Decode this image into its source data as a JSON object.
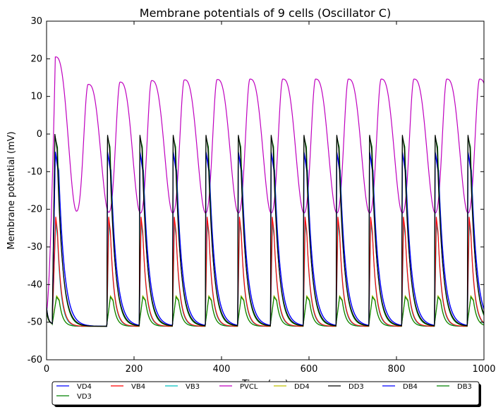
{
  "chart_data": {
    "type": "line",
    "title": "Membrane potentials of 9 cells (Oscillator C)",
    "xlabel": "Time (ms)",
    "ylabel": "Membrane potential (mV)",
    "xlim": [
      0,
      1000
    ],
    "ylim": [
      -60,
      30
    ],
    "xticks": [
      0,
      200,
      400,
      600,
      800,
      1000
    ],
    "yticks": [
      -60,
      -50,
      -40,
      -30,
      -20,
      -10,
      0,
      10,
      20,
      30
    ],
    "grid": false,
    "legend_position": "bottom",
    "series": [
      {
        "name": "VD4",
        "color": "#0000ff"
      },
      {
        "name": "VB4",
        "color": "#ff0000"
      },
      {
        "name": "VB3",
        "color": "#00bfbf"
      },
      {
        "name": "PVCL",
        "color": "#bf00bf"
      },
      {
        "name": "DD4",
        "color": "#bfbf00"
      },
      {
        "name": "DD3",
        "color": "#000000"
      },
      {
        "name": "DB4",
        "color": "#0000ff"
      },
      {
        "name": "DB3",
        "color": "#008000"
      },
      {
        "name": "VD3",
        "color": "#008000"
      }
    ],
    "oscillation": {
      "spike_onsets_ms": [
        13,
        138,
        212,
        288,
        363,
        437,
        512,
        587,
        662,
        737,
        812,
        887,
        962
      ],
      "pvcl_peaks_ms": [
        20,
        95,
        168,
        240,
        315,
        390,
        465,
        540,
        615,
        690,
        765,
        840,
        915,
        990
      ],
      "pvcl_peak_mv": [
        20.5,
        13.2,
        13.8,
        14.2,
        14.4,
        14.5,
        14.6,
        14.6,
        14.6,
        14.6,
        14.6,
        14.6,
        14.6,
        14.6
      ],
      "pvcl_trough_mv": [
        -20,
        -20.5,
        -20.8,
        -21,
        -21,
        -21,
        -21,
        -21,
        -21,
        -21,
        -21,
        -21,
        -21,
        -21
      ],
      "rest_mv": -50.5,
      "dd3_peak_mv": 0,
      "db4_peak_mv": -5,
      "vb4_peak_mv": -22,
      "vb3_peak_mv": -23.5,
      "dd4_peak_mv": -43
    }
  }
}
